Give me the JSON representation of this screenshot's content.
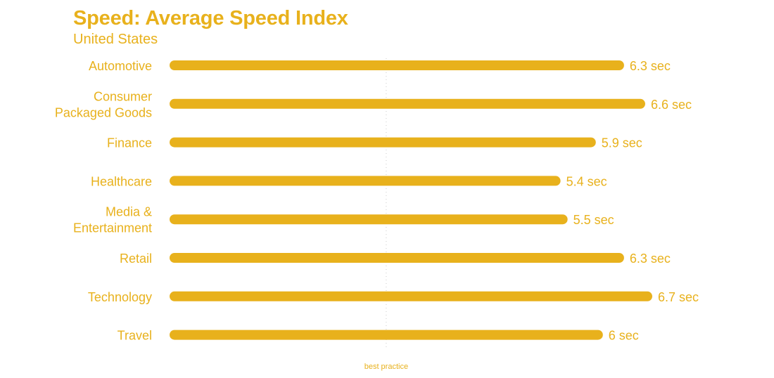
{
  "chart_data": {
    "type": "bar",
    "orientation": "horizontal",
    "title": "Speed: Average Speed Index",
    "subtitle": "United States",
    "categories": [
      "Automotive",
      "Consumer Packaged Goods",
      "Finance",
      "Healthcare",
      "Media & Entertainment",
      "Retail",
      "Technology",
      "Travel"
    ],
    "category_lines": [
      [
        "Automotive"
      ],
      [
        "Consumer",
        "Packaged Goods"
      ],
      [
        "Finance"
      ],
      [
        "Healthcare"
      ],
      [
        "Media &",
        "Entertainment"
      ],
      [
        "Retail"
      ],
      [
        "Technology"
      ],
      [
        "Travel"
      ]
    ],
    "values": [
      6.3,
      6.6,
      5.9,
      5.4,
      5.5,
      6.3,
      6.7,
      6
    ],
    "value_labels": [
      "6.3 sec",
      "6.6 sec",
      "5.9 sec",
      "5.4 sec",
      "5.5 sec",
      "6.3 sec",
      "6.7 sec",
      "6 sec"
    ],
    "unit": "sec",
    "reference_line": {
      "value": 3,
      "label": "best practice"
    },
    "xlim": [
      0,
      6.7
    ],
    "grid": false,
    "legend": "none",
    "colors": {
      "bar": "#e8b11c",
      "text": "#e8b11c",
      "reference": "#cccccc"
    }
  }
}
